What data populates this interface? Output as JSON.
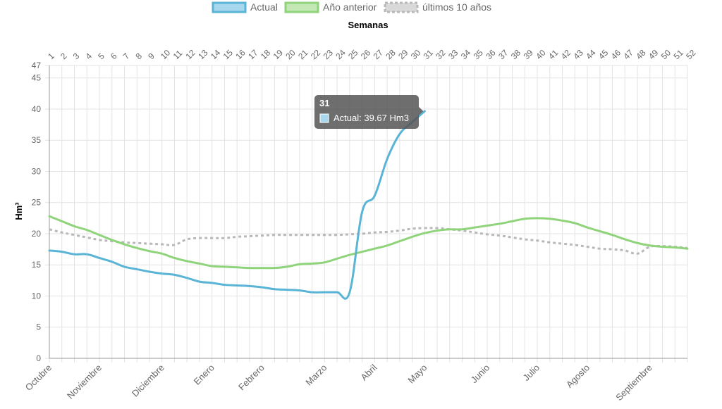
{
  "chart_data": {
    "type": "line",
    "x_axis_top": {
      "title": "Semanas",
      "categories": [
        "1",
        "2",
        "3",
        "4",
        "5",
        "6",
        "7",
        "8",
        "9",
        "10",
        "11",
        "12",
        "13",
        "14",
        "15",
        "16",
        "17",
        "18",
        "19",
        "20",
        "21",
        "22",
        "23",
        "24",
        "25",
        "26",
        "27",
        "28",
        "29",
        "30",
        "31",
        "32",
        "33",
        "34",
        "35",
        "36",
        "37",
        "38",
        "39",
        "40",
        "41",
        "42",
        "43",
        "44",
        "45",
        "46",
        "47",
        "48",
        "49",
        "50",
        "51",
        "52"
      ]
    },
    "x_axis_bottom": {
      "labels": [
        {
          "text": "Octubre",
          "week": 1
        },
        {
          "text": "Noviembre",
          "week": 5
        },
        {
          "text": "Diciembre",
          "week": 10
        },
        {
          "text": "Enero",
          "week": 14
        },
        {
          "text": "Febrero",
          "week": 18
        },
        {
          "text": "Marzo",
          "week": 23
        },
        {
          "text": "Abril",
          "week": 27
        },
        {
          "text": "Mayo",
          "week": 31
        },
        {
          "text": "Junio",
          "week": 36
        },
        {
          "text": "Julio",
          "week": 40
        },
        {
          "text": "Agosto",
          "week": 44
        },
        {
          "text": "Septiembre",
          "week": 49
        }
      ]
    },
    "y_axis": {
      "title": "Hm³",
      "min": 0,
      "max": 47,
      "ticks": [
        "0",
        "5",
        "10",
        "15",
        "20",
        "25",
        "30",
        "35",
        "40",
        "45",
        "47"
      ],
      "tick_values": [
        0,
        5,
        10,
        15,
        20,
        25,
        30,
        35,
        40,
        45,
        47
      ]
    },
    "grid": true,
    "legend": {
      "placement": "top",
      "items": [
        {
          "label": "Actual",
          "color": "#5ab4d6",
          "fill": "#a7d8ee",
          "style": "solid"
        },
        {
          "label": "Año anterior",
          "color": "#8fd47a",
          "fill": "#c3e8b5",
          "style": "solid"
        },
        {
          "label": "últimos 10 años",
          "color": "#b8b8b8",
          "fill": "#d9d9d9",
          "style": "dashed"
        }
      ]
    },
    "series": [
      {
        "name": "Actual",
        "color": "#5ab4d6",
        "style": "solid",
        "values": [
          17.3,
          17.1,
          16.7,
          16.7,
          16.1,
          15.5,
          14.7,
          14.3,
          13.9,
          13.6,
          13.4,
          12.9,
          12.3,
          12.1,
          11.8,
          11.7,
          11.6,
          11.4,
          11.1,
          11.0,
          10.9,
          10.6,
          10.6,
          10.6,
          10.6,
          23.5,
          26.1,
          32.0,
          36.0,
          37.9,
          39.67
        ]
      },
      {
        "name": "Año anterior",
        "color": "#8fd47a",
        "style": "solid",
        "values": [
          22.8,
          22.0,
          21.2,
          20.6,
          19.8,
          19.0,
          18.3,
          17.7,
          17.2,
          16.8,
          16.1,
          15.6,
          15.2,
          14.8,
          14.7,
          14.6,
          14.5,
          14.5,
          14.5,
          14.7,
          15.1,
          15.2,
          15.4,
          16.0,
          16.6,
          17.1,
          17.6,
          18.1,
          18.8,
          19.5,
          20.1,
          20.5,
          20.7,
          20.7,
          21.0,
          21.3,
          21.6,
          22.0,
          22.4,
          22.5,
          22.4,
          22.1,
          21.7,
          21.0,
          20.4,
          19.8,
          19.1,
          18.5,
          18.1,
          17.9,
          17.8,
          17.6
        ]
      },
      {
        "name": "últimos 10 años",
        "color": "#b8b8b8",
        "style": "dashed",
        "values": [
          20.7,
          20.2,
          19.8,
          19.4,
          19.0,
          18.8,
          18.6,
          18.5,
          18.4,
          18.3,
          18.2,
          19.1,
          19.3,
          19.3,
          19.3,
          19.5,
          19.6,
          19.7,
          19.8,
          19.8,
          19.8,
          19.8,
          19.8,
          19.8,
          19.9,
          20.0,
          20.2,
          20.3,
          20.5,
          20.8,
          20.9,
          20.9,
          20.7,
          20.5,
          20.2,
          19.9,
          19.7,
          19.4,
          19.1,
          18.9,
          18.6,
          18.4,
          18.2,
          17.9,
          17.6,
          17.5,
          17.3,
          16.8,
          17.9,
          18.0,
          17.9,
          17.7
        ]
      }
    ],
    "tooltip": {
      "title": "31",
      "label": "Actual: 39.67 Hm3",
      "week": 31,
      "value": 39.67,
      "color": "#5ab4d6",
      "background": "#555555"
    }
  }
}
